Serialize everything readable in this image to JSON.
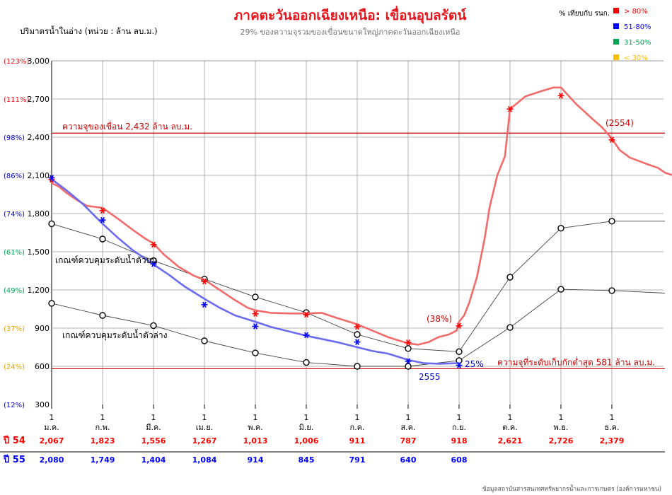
{
  "header": {
    "title": "ภาคตะวันออกเฉียงเหนือ: เขื่อนอุบลรัตน์",
    "subtitle": "29%  ของความจุรวมของเขื่อนขนาดใหญ่ภาคตะวันออกเฉียงเหนือ",
    "ylabel": "ปริมาตรน้ำในอ่าง (หน่วย : ล้าน ลบ.ม.)",
    "source": "ข้อมูลสถาบันสารสนเทศทรัพยากรน้ำและการเกษตร (องค์การมหาชน)"
  },
  "legend": {
    "title": "% เทียบกับ รนก.",
    "items": [
      {
        "label": "> 80%",
        "color": "#ff0000"
      },
      {
        "label": "51-80%",
        "color": "#0000ff"
      },
      {
        "label": "31-50%",
        "color": "#00a651"
      },
      {
        "label": "< 30%",
        "color": "#ffc000"
      }
    ]
  },
  "colors": {
    "y54": "#f26b6b",
    "y54_marker": "#ff0000",
    "y55": "#6b6bf2",
    "y55_marker": "#0000ff",
    "rule": "#cc0000",
    "grid": "#9a9a9a"
  },
  "chart_data": {
    "type": "line",
    "ylim": [
      300,
      3000
    ],
    "yticks": [
      {
        "value": 300,
        "label": "300",
        "pct": "(12%)",
        "pct_color": "#0000cc"
      },
      {
        "value": 600,
        "label": "600",
        "pct": "(24%)",
        "pct_color": "#e8a400"
      },
      {
        "value": 900,
        "label": "900",
        "pct": "(37%)",
        "pct_color": "#e8a400"
      },
      {
        "value": 1200,
        "label": "1,200",
        "pct": "(49%)",
        "pct_color": "#00a651"
      },
      {
        "value": 1500,
        "label": "1,500",
        "pct": "(61%)",
        "pct_color": "#00a651"
      },
      {
        "value": 1800,
        "label": "1,800",
        "pct": "(74%)",
        "pct_color": "#0000cc"
      },
      {
        "value": 2100,
        "label": "2,100",
        "pct": "(86%)",
        "pct_color": "#0000cc"
      },
      {
        "value": 2400,
        "label": "2,400",
        "pct": "(98%)",
        "pct_color": "#0000cc"
      },
      {
        "value": 2700,
        "label": "2,700",
        "pct": "(111%)",
        "pct_color": "#e8141c"
      },
      {
        "value": 3000,
        "label": "3,000",
        "pct": "(123%)",
        "pct_color": "#e8141c"
      }
    ],
    "months": [
      "ม.ค.",
      "ก.พ.",
      "มี.ค.",
      "เม.ย.",
      "พ.ค.",
      "มิ.ย.",
      "ก.ค.",
      "ส.ค.",
      "ก.ย.",
      "ต.ค.",
      "พ.ย.",
      "ธ.ค."
    ],
    "month_day": "1",
    "series": [
      {
        "name": "ปี 54",
        "key": "y54",
        "month_values": [
          2067,
          1823,
          1556,
          1267,
          1013,
          1006,
          911,
          787,
          918,
          2621,
          2726,
          2379
        ],
        "path": [
          [
            0,
            2040
          ],
          [
            0.15,
            2010
          ],
          [
            0.3,
            1960
          ],
          [
            0.5,
            1905
          ],
          [
            0.7,
            1860
          ],
          [
            1,
            1845
          ],
          [
            1.3,
            1760
          ],
          [
            1.6,
            1670
          ],
          [
            1.85,
            1600
          ],
          [
            2,
            1565
          ],
          [
            2.2,
            1480
          ],
          [
            2.5,
            1380
          ],
          [
            2.8,
            1310
          ],
          [
            3,
            1280
          ],
          [
            3.3,
            1200
          ],
          [
            3.6,
            1120
          ],
          [
            3.85,
            1060
          ],
          [
            4,
            1040
          ],
          [
            4.3,
            1020
          ],
          [
            4.7,
            1015
          ],
          [
            5,
            1015
          ],
          [
            5.3,
            1020
          ],
          [
            5.6,
            980
          ],
          [
            6,
            930
          ],
          [
            6.3,
            880
          ],
          [
            6.6,
            830
          ],
          [
            7,
            780
          ],
          [
            7.2,
            770
          ],
          [
            7.4,
            790
          ],
          [
            7.6,
            830
          ],
          [
            7.8,
            850
          ],
          [
            7.95,
            880
          ],
          [
            8,
            950
          ],
          [
            8.1,
            1000
          ],
          [
            8.2,
            1100
          ],
          [
            8.35,
            1300
          ],
          [
            8.5,
            1600
          ],
          [
            8.6,
            1850
          ],
          [
            8.75,
            2100
          ],
          [
            8.9,
            2250
          ],
          [
            9,
            2621
          ],
          [
            9.3,
            2720
          ],
          [
            9.6,
            2760
          ],
          [
            9.85,
            2790
          ],
          [
            10,
            2790
          ],
          [
            10.3,
            2660
          ],
          [
            10.6,
            2550
          ],
          [
            10.8,
            2480
          ],
          [
            11,
            2390
          ],
          [
            11.15,
            2300
          ],
          [
            11.35,
            2240
          ],
          [
            11.55,
            2210
          ],
          [
            11.75,
            2180
          ],
          [
            11.9,
            2160
          ],
          [
            12.05,
            2120
          ],
          [
            12.2,
            2100
          ]
        ]
      },
      {
        "name": "ปี 55",
        "key": "y55",
        "month_values": [
          2080,
          1749,
          1404,
          1084,
          914,
          845,
          791,
          640,
          608
        ],
        "path": [
          [
            0,
            2070
          ],
          [
            0.3,
            1980
          ],
          [
            0.6,
            1880
          ],
          [
            1,
            1720
          ],
          [
            1.3,
            1610
          ],
          [
            1.6,
            1510
          ],
          [
            2,
            1400
          ],
          [
            2.3,
            1320
          ],
          [
            2.6,
            1230
          ],
          [
            3,
            1130
          ],
          [
            3.3,
            1060
          ],
          [
            3.6,
            1000
          ],
          [
            4,
            950
          ],
          [
            4.3,
            910
          ],
          [
            4.6,
            880
          ],
          [
            5,
            840
          ],
          [
            5.3,
            815
          ],
          [
            5.6,
            790
          ],
          [
            6,
            750
          ],
          [
            6.3,
            720
          ],
          [
            6.6,
            700
          ],
          [
            7,
            650
          ],
          [
            7.3,
            625
          ],
          [
            7.6,
            620
          ],
          [
            8,
            625
          ]
        ]
      }
    ],
    "upper_rule": [
      1720,
      1600,
      1430,
      1285,
      1145,
      1022,
      850,
      740,
      715,
      1300,
      1685,
      1740
    ],
    "upper_rule_tail": 1740,
    "lower_rule": [
      1095,
      1000,
      920,
      800,
      705,
      630,
      600,
      600,
      645,
      905,
      1205,
      1195
    ],
    "lower_rule_tail": 1175,
    "capacity": 2432,
    "min_storage": 581
  },
  "annotations": {
    "capacity": "ความจุของเขื่อน 2,432 ล้าน ลบ.ม.",
    "min_storage": "ความจุที่ระดับเก็บกักต่ำสุด 581 ล้าน ลบ.ม.",
    "upper_rule": "เกณฑ์ควบคุมระดับน้ำตัวบน",
    "lower_rule": "เกณฑ์ควบคุมระดับน้ำตัวล่าง",
    "pct38": "(38%)",
    "pct25": "25%",
    "year55": "2555",
    "year54": "(2554)"
  },
  "table": {
    "row54": {
      "label": "ปี 54",
      "values": [
        "2,067",
        "1,823",
        "1,556",
        "1,267",
        "1,013",
        "1,006",
        "911",
        "787",
        "918",
        "2,621",
        "2,726",
        "2,379"
      ]
    },
    "row55": {
      "label": "ปี 55",
      "values": [
        "2,080",
        "1,749",
        "1,404",
        "1,084",
        "914",
        "845",
        "791",
        "640",
        "608"
      ]
    }
  }
}
